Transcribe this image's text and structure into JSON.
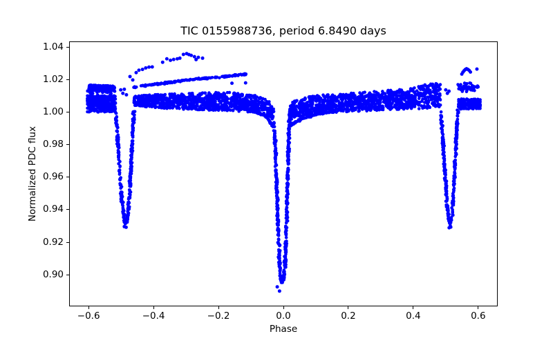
{
  "chart_data": {
    "type": "scatter",
    "title": "TIC 0155988736, period 6.8490 days",
    "xlabel": "Phase",
    "ylabel": "Normalized PDC flux",
    "xlim": [
      -0.66,
      0.66
    ],
    "ylim": [
      0.8806,
      1.0434
    ],
    "grid": false,
    "legend": false,
    "marker": {
      "color": "#0000ff",
      "radius": 2.3,
      "outlier_radius": 2.5,
      "style": "point"
    },
    "xticks": {
      "values": [
        -0.6,
        -0.4,
        -0.2,
        0.0,
        0.2,
        0.4,
        0.6
      ],
      "labels": [
        "−0.6",
        "−0.4",
        "−0.2",
        "0.0",
        "0.2",
        "0.4",
        "0.6"
      ]
    },
    "yticks": {
      "values": [
        0.9,
        0.92,
        0.94,
        0.96,
        0.98,
        1.0,
        1.02,
        1.04
      ],
      "labels": [
        "0.90",
        "0.92",
        "0.94",
        "0.96",
        "0.98",
        "1.00",
        "1.02",
        "1.04"
      ]
    },
    "summary": {
      "object": "TIC 0155988736",
      "period_days": 6.849,
      "data_phase_range": [
        -0.605,
        0.607
      ],
      "out_of_eclipse_flux_range": [
        0.999,
        1.017
      ],
      "primary_eclipse": {
        "phase_center": -0.004,
        "min_flux": 0.889,
        "ingress_phase": -0.029,
        "egress_phase": 0.02
      },
      "secondary_eclipse": {
        "phase_center": 0.512,
        "min_flux": 0.929,
        "ingress_phase": 0.484,
        "egress_phase": 0.538,
        "wrapped_copy_center": -0.488
      },
      "bright_outlier_flux_max": 1.036
    },
    "bands": [
      {
        "name": "left-blob-upper",
        "n": 150,
        "env": [
          [
            -0.604,
            1.0128,
            1.0167
          ],
          [
            -0.518,
            1.0125,
            1.016
          ]
        ]
      },
      {
        "name": "left-blob-gap",
        "n": 14,
        "env": [
          [
            -0.6,
            1.0104,
            1.0126
          ],
          [
            -0.525,
            1.0104,
            1.0126
          ]
        ]
      },
      {
        "name": "left-blob-lower",
        "n": 300,
        "env": [
          [
            -0.604,
            0.9998,
            1.0102
          ],
          [
            -0.517,
            1.0002,
            1.01
          ]
        ]
      },
      {
        "name": "left-mid-band",
        "n": 900,
        "env": [
          [
            -0.4605,
            1.004,
            1.0096
          ],
          [
            -0.415,
            1.0028,
            1.0106
          ],
          [
            -0.33,
            1.0018,
            1.0112
          ],
          [
            -0.25,
            1.0012,
            1.0118
          ],
          [
            -0.175,
            1.0008,
            1.0122
          ],
          [
            -0.115,
            1.0002,
            1.0112
          ],
          [
            -0.07,
            0.999,
            1.0096
          ],
          [
            -0.042,
            0.9972,
            1.007
          ],
          [
            -0.029,
            0.994,
            1.002
          ]
        ]
      },
      {
        "name": "right-mid-band",
        "n": 1100,
        "env": [
          [
            0.017,
            0.995,
            1.0046
          ],
          [
            0.032,
            0.9962,
            1.0068
          ],
          [
            0.062,
            0.9976,
            1.0088
          ],
          [
            0.1,
            0.999,
            1.0102
          ],
          [
            0.2,
            1.0002,
            1.0116
          ],
          [
            0.3,
            1.001,
            1.013
          ],
          [
            0.4,
            1.0018,
            1.015
          ],
          [
            0.43,
            1.0022,
            1.017
          ],
          [
            0.465,
            1.0026,
            1.0185
          ],
          [
            0.4838,
            1.003,
            1.017
          ]
        ]
      },
      {
        "name": "right-edge-band",
        "n": 170,
        "env": [
          [
            0.539,
            1.0018,
            1.0082
          ],
          [
            0.607,
            1.002,
            1.008
          ]
        ]
      },
      {
        "name": "right-upper-cluster",
        "n": 55,
        "env": [
          [
            0.537,
            1.012,
            1.0172
          ],
          [
            0.558,
            1.0126,
            1.018
          ],
          [
            0.584,
            1.0122,
            1.0178
          ],
          [
            0.602,
            1.0128,
            1.017
          ]
        ]
      }
    ],
    "strands": [
      {
        "name": "upper-strand",
        "n": 165,
        "jx": 1.5,
        "jy": 1.5,
        "pts": [
          [
            -0.46,
            1.0152
          ],
          [
            -0.415,
            1.0166
          ],
          [
            -0.355,
            1.018
          ],
          [
            -0.295,
            1.0196
          ],
          [
            -0.235,
            1.0209
          ],
          [
            -0.175,
            1.0219
          ],
          [
            -0.13,
            1.0229
          ],
          [
            -0.1115,
            1.0233
          ]
        ]
      },
      {
        "name": "secondary-eclipse-left",
        "n": 280,
        "jx": 1.7,
        "jy": 1.6,
        "pts": [
          [
            -0.517,
            1.0008
          ],
          [
            -0.51,
            0.9818
          ],
          [
            -0.503,
            0.9598
          ],
          [
            -0.4963,
            0.9438
          ],
          [
            -0.4905,
            0.9338
          ],
          [
            -0.4863,
            0.9313
          ],
          [
            -0.4822,
            0.932
          ],
          [
            -0.4783,
            0.9368
          ],
          [
            -0.4733,
            0.952
          ],
          [
            -0.468,
            0.972
          ],
          [
            -0.4633,
            0.991
          ],
          [
            -0.4603,
            1.0008
          ]
        ]
      },
      {
        "name": "primary-eclipse",
        "n": 460,
        "jx": 1.8,
        "jy": 1.6,
        "pts": [
          [
            -0.0288,
            0.9938
          ],
          [
            -0.0256,
            0.9828
          ],
          [
            -0.0221,
            0.9638
          ],
          [
            -0.018,
            0.9418
          ],
          [
            -0.0146,
            0.9198
          ],
          [
            -0.0115,
            0.9048
          ],
          [
            -0.008,
            0.8978
          ],
          [
            -0.004,
            0.8953
          ],
          [
            0.0005,
            0.8972
          ],
          [
            0.004,
            0.9038
          ],
          [
            0.0076,
            0.9188
          ],
          [
            0.011,
            0.9428
          ],
          [
            0.0146,
            0.9688
          ],
          [
            0.0176,
            0.9898
          ],
          [
            0.0196,
            0.9972
          ]
        ]
      },
      {
        "name": "secondary-eclipse-right",
        "n": 290,
        "jx": 1.7,
        "jy": 1.6,
        "pts": [
          [
            0.4845,
            1.0018
          ],
          [
            0.491,
            0.9838
          ],
          [
            0.4975,
            0.9628
          ],
          [
            0.5037,
            0.9448
          ],
          [
            0.5092,
            0.9338
          ],
          [
            0.5127,
            0.9308
          ],
          [
            0.5162,
            0.9318
          ],
          [
            0.52,
            0.9378
          ],
          [
            0.525,
            0.9538
          ],
          [
            0.53,
            0.974
          ],
          [
            0.5347,
            0.9925
          ],
          [
            0.5377,
            1.0012
          ]
        ]
      },
      {
        "name": "pre-primary-shoulder-a",
        "n": 75,
        "jx": 1.5,
        "jy": 1.3,
        "pts": [
          [
            -0.158,
            1.0042
          ],
          [
            -0.102,
            1.0008
          ],
          [
            -0.056,
            0.9978
          ],
          [
            -0.03,
            0.9906
          ]
        ]
      },
      {
        "name": "pre-primary-shoulder-b",
        "n": 50,
        "jx": 1.5,
        "jy": 1.2,
        "pts": [
          [
            -0.128,
            1.0068
          ],
          [
            -0.072,
            1.0044
          ],
          [
            -0.033,
            1.0002
          ]
        ]
      },
      {
        "name": "post-primary-shoulder-a",
        "n": 75,
        "jx": 1.5,
        "jy": 1.3,
        "pts": [
          [
            0.0198,
            0.9916
          ],
          [
            0.056,
            0.9958
          ],
          [
            0.102,
            0.9986
          ],
          [
            0.158,
            1.0008
          ]
        ]
      },
      {
        "name": "post-primary-shoulder-b",
        "n": 50,
        "jx": 1.5,
        "jy": 1.2,
        "pts": [
          [
            0.025,
            0.998
          ],
          [
            0.082,
            1.0018
          ],
          [
            0.142,
            1.003
          ]
        ]
      }
    ],
    "outlier_points": {
      "arc-left": [
        [
          -0.4535,
          1.0242
        ],
        [
          -0.445,
          1.0257
        ],
        [
          -0.434,
          1.0262
        ],
        [
          -0.424,
          1.0271
        ],
        [
          -0.414,
          1.0276
        ],
        [
          -0.404,
          1.0277
        ],
        [
          -0.372,
          1.0306
        ],
        [
          -0.359,
          1.0327
        ],
        [
          -0.348,
          1.0318
        ],
        [
          -0.338,
          1.0323
        ],
        [
          -0.327,
          1.0327
        ],
        [
          -0.319,
          1.0331
        ],
        [
          -0.308,
          1.0354
        ],
        [
          -0.298,
          1.0359
        ],
        [
          -0.291,
          1.0353
        ],
        [
          -0.284,
          1.0348
        ],
        [
          -0.274,
          1.034
        ],
        [
          -0.269,
          1.0322
        ],
        [
          -0.262,
          1.0336
        ],
        [
          -0.249,
          1.0331
        ]
      ],
      "arc-right": [
        [
          0.5495,
          1.0233
        ],
        [
          0.553,
          1.0245
        ],
        [
          0.5565,
          1.0254
        ],
        [
          0.56,
          1.0261
        ],
        [
          0.564,
          1.0266
        ],
        [
          0.568,
          1.0262
        ],
        [
          0.572,
          1.0256
        ],
        [
          0.576,
          1.0246
        ],
        [
          0.596,
          1.0264
        ]
      ],
      "stray": [
        [
          -0.4725,
          1.0218
        ],
        [
          -0.464,
          1.0197
        ],
        [
          -0.501,
          1.0136
        ],
        [
          -0.4945,
          1.0115
        ],
        [
          -0.49,
          1.014
        ],
        [
          -0.4835,
          1.0106
        ],
        [
          0.5,
          1.0136
        ],
        [
          0.505,
          1.0115
        ],
        [
          0.51,
          1.0128
        ],
        [
          -0.1585,
          1.0177
        ],
        [
          -0.1165,
          1.0179
        ],
        [
          -0.019,
          0.8926
        ],
        [
          -0.012,
          0.89
        ],
        [
          0.5105,
          0.9289
        ],
        [
          0.5155,
          0.9293
        ],
        [
          -0.49,
          0.9296
        ],
        [
          -0.4845,
          0.9292
        ]
      ]
    }
  }
}
